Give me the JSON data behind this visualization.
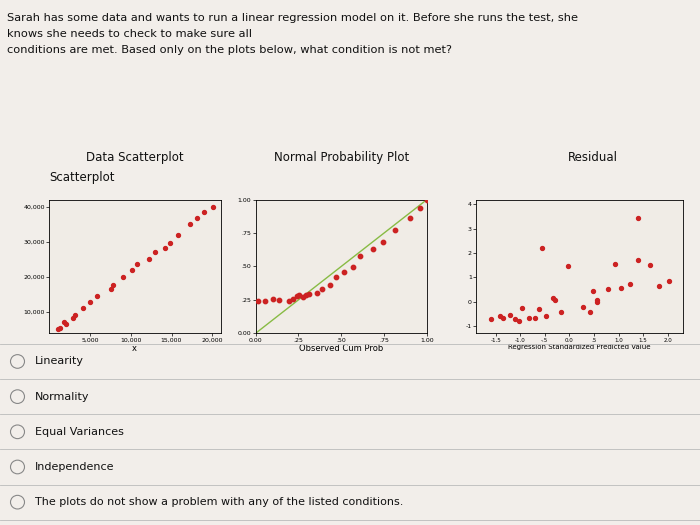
{
  "title_text_line1": "Sarah has some data and wants to run a linear regression model on it. Before she runs the test, she",
  "title_text_line2": "knows she needs to check to make sure all",
  "title_text_line3": "conditions are met. Based only on the plots below, what condition is not met?",
  "header_line1_left": "Data Scatterplot",
  "header_line1_center": "Normal Probability Plot",
  "header_line1_right": "Residual",
  "header_line2_left": "Scatterplot",
  "plot1_xlabel": "x",
  "plot2_xlabel": "Observed Cum Prob",
  "plot3_xlabel": "Regression Standardized Predicted Value",
  "dot_color": "#cc2222",
  "line_color": "#88bb44",
  "bg_color": "#e8e4de",
  "plot_bg": "#f0ece6",
  "choices": [
    "Linearity",
    "Normality",
    "Equal Variances",
    "Independence",
    "The plots do not show a problem with any of the listed conditions."
  ],
  "scatter1_x": [
    1000,
    1500,
    2000,
    2200,
    2800,
    3500,
    4200,
    5000,
    6000,
    7000,
    8000,
    9000,
    10000,
    11000,
    12000,
    13000,
    14000,
    15000,
    16000,
    17000,
    18000,
    19000,
    20000
  ],
  "scatter1_y": [
    5000,
    6000,
    7500,
    8000,
    9000,
    10000,
    11500,
    13000,
    14500,
    16500,
    18000,
    20000,
    22000,
    24000,
    25500,
    27000,
    28500,
    30000,
    32000,
    34500,
    36500,
    38500,
    40000
  ],
  "scatter1_xlim": [
    0,
    21000
  ],
  "scatter1_ylim": [
    4000,
    42000
  ],
  "scatter1_xticks": [
    5000,
    10000,
    15000,
    20000
  ],
  "scatter1_xtick_labels": [
    "5,000",
    "10,000",
    "15,000",
    "20,000"
  ],
  "scatter1_yticks": [
    10000,
    20000,
    30000,
    40000
  ],
  "scatter1_ytick_labels": [
    "10,000",
    "20,000",
    "30,000",
    "40,000"
  ],
  "prob_observed": [
    0.0,
    0.05,
    0.1,
    0.15,
    0.2,
    0.22,
    0.24,
    0.26,
    0.28,
    0.3,
    0.32,
    0.35,
    0.38,
    0.42,
    0.47,
    0.52,
    0.57,
    0.62,
    0.68,
    0.75,
    0.82,
    0.9,
    0.95,
    1.0
  ],
  "prob_expected": [
    0.25,
    0.25,
    0.25,
    0.25,
    0.25,
    0.26,
    0.27,
    0.27,
    0.28,
    0.29,
    0.3,
    0.32,
    0.34,
    0.37,
    0.41,
    0.46,
    0.51,
    0.57,
    0.63,
    0.7,
    0.78,
    0.87,
    0.94,
    1.0
  ],
  "prob_xlim": [
    0.0,
    1.0
  ],
  "prob_ylim": [
    0.0,
    1.0
  ],
  "prob_xticks": [
    0.0,
    0.25,
    0.5,
    0.75,
    1.0
  ],
  "prob_xtick_labels": [
    "0.00",
    ".25",
    ".50",
    ".75",
    "1.00"
  ],
  "prob_yticks": [
    0.0,
    0.25,
    0.5,
    0.75,
    1.0
  ],
  "prob_ytick_labels": [
    "0.00",
    ".25",
    ".50",
    ".75",
    "1.00"
  ],
  "resid_x": [
    -1.6,
    -1.4,
    -1.3,
    -1.2,
    -1.1,
    -1.0,
    -0.9,
    -0.8,
    -0.7,
    -0.6,
    -0.5,
    -0.4,
    -0.3,
    -0.2,
    0.2,
    0.4,
    0.5,
    0.6,
    0.8,
    1.0,
    1.2,
    1.4,
    1.6,
    1.8,
    2.0
  ],
  "resid_y": [
    -0.7,
    -0.6,
    -0.7,
    -0.5,
    -0.6,
    -0.8,
    -0.4,
    -0.5,
    -0.6,
    -0.3,
    -0.6,
    0.1,
    0.0,
    -0.5,
    -0.3,
    -0.4,
    0.0,
    0.1,
    0.5,
    0.6,
    0.8,
    1.6,
    1.5,
    0.7,
    0.8
  ],
  "resid_extra_x": [
    -0.5,
    0.0,
    0.5,
    1.0,
    1.5
  ],
  "resid_extra_y": [
    2.2,
    1.5,
    0.5,
    1.5,
    3.5
  ],
  "resid_xlim": [
    -1.9,
    2.3
  ],
  "resid_ylim": [
    -1.3,
    4.2
  ],
  "resid_xticks": [
    -1.5,
    -1.0,
    -0.5,
    0.0,
    0.5,
    1.0,
    1.5,
    2.0
  ],
  "resid_xtick_labels": [
    "-1.5",
    "-1.0",
    "-.5",
    "0.0",
    ".5",
    "1.0",
    "1.5",
    "2.0"
  ],
  "resid_yticks": [
    -1,
    0,
    1,
    2,
    3,
    4
  ],
  "resid_ytick_labels": [
    "-1",
    "0",
    "1",
    "2",
    "3",
    "4"
  ]
}
